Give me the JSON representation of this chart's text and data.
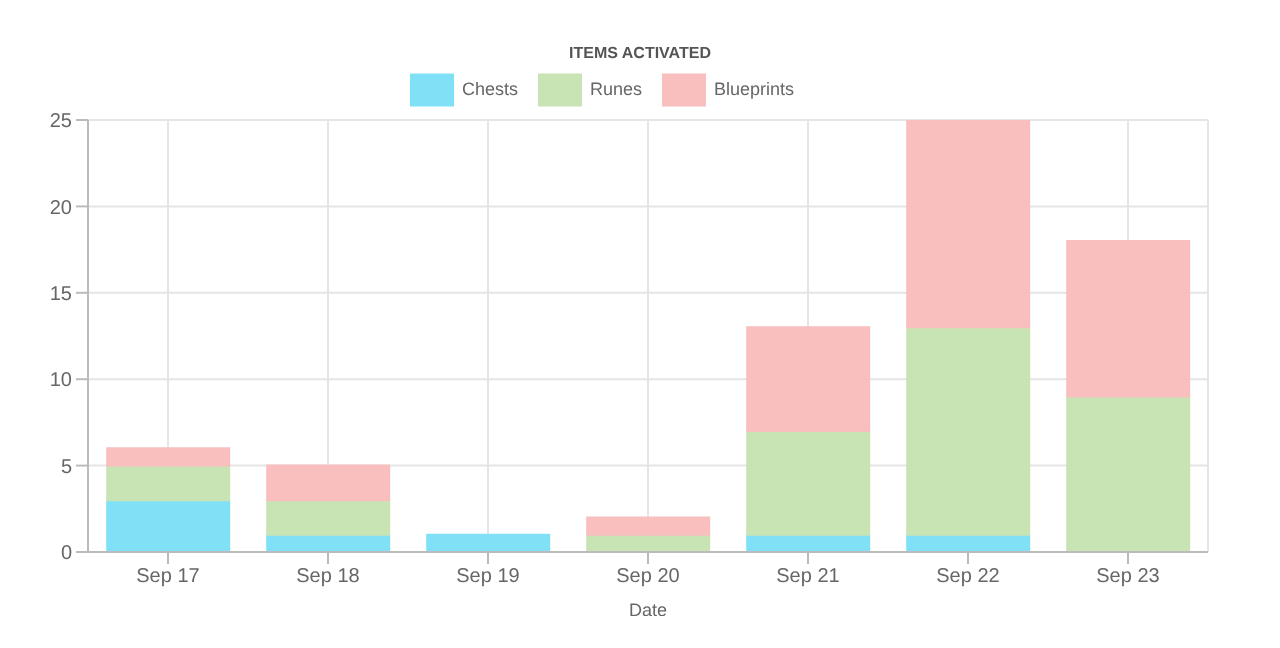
{
  "chart_data": {
    "type": "bar",
    "title": "ITEMS ACTIVATED",
    "xlabel": "Date",
    "categories": [
      "Sep 17",
      "Sep 18",
      "Sep 19",
      "Sep 20",
      "Sep 21",
      "Sep 22",
      "Sep 23"
    ],
    "stacked": true,
    "series": [
      {
        "name": "Chests",
        "color": "#80e0f6",
        "values": [
          3,
          1,
          1,
          0,
          1,
          1,
          0
        ]
      },
      {
        "name": "Runes",
        "color": "#c9e4b4",
        "values": [
          2,
          2,
          0,
          1,
          6,
          12,
          9
        ]
      },
      {
        "name": "Blueprints",
        "color": "#f9bebe",
        "values": [
          1,
          2,
          0,
          1,
          6,
          12,
          9
        ]
      }
    ],
    "ylim": [
      0,
      25
    ],
    "yticks": [
      0,
      5,
      10,
      15,
      20,
      25
    ],
    "grid": true,
    "legend": "top"
  }
}
